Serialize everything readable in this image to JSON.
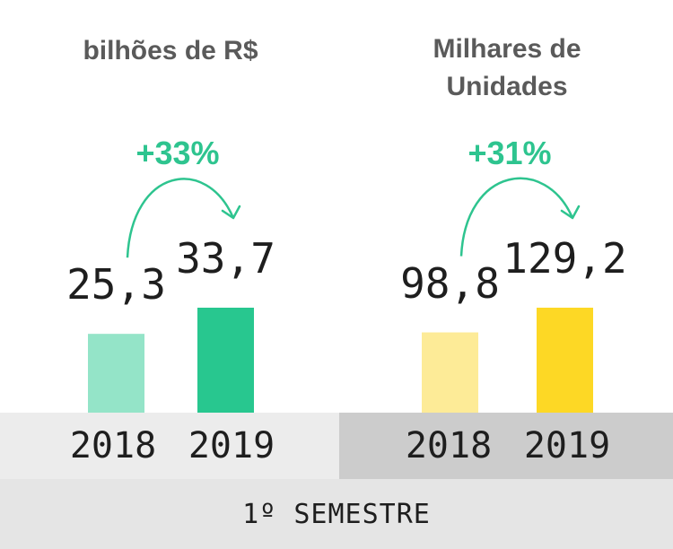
{
  "chart_data": [
    {
      "type": "bar",
      "unit_label": "bilhões de R$",
      "categories": [
        "2018",
        "2019"
      ],
      "values": [
        25.3,
        33.7
      ],
      "value_labels": [
        "25,3",
        "33,7"
      ],
      "growth_label": "+33%",
      "colors": [
        "#94e4c8",
        "#28c78f"
      ],
      "accent": "#2ec48f"
    },
    {
      "type": "bar",
      "unit_label": "Milhares de\nUnidades",
      "categories": [
        "2018",
        "2019"
      ],
      "values": [
        98.8,
        129.2
      ],
      "value_labels": [
        "98,8",
        "129,2"
      ],
      "growth_label": "+31%",
      "colors": [
        "#fdeb97",
        "#fdd825"
      ],
      "accent": "#2ec48f"
    }
  ],
  "footer_label": "1º SEMESTRE"
}
